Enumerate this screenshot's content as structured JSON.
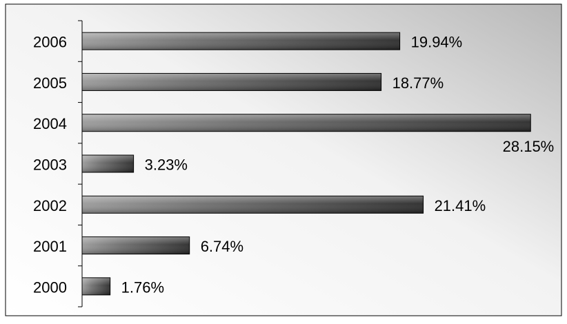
{
  "chart_data": {
    "type": "bar",
    "orientation": "horizontal",
    "categories": [
      "2006",
      "2005",
      "2004",
      "2003",
      "2002",
      "2001",
      "2000"
    ],
    "values": [
      19.94,
      18.77,
      28.15,
      3.23,
      21.41,
      6.74,
      1.76
    ],
    "value_labels": [
      "19.94%",
      "18.77%",
      "28.15%",
      "3.23%",
      "21.41%",
      "6.74%",
      "1.76%"
    ],
    "title": "",
    "xlabel": "",
    "ylabel": "",
    "xlim": [
      0,
      29
    ],
    "grid": false,
    "legend": "none",
    "colors": {
      "bar_dark": "#2a2a2a",
      "bar_light": "#9a9a9a",
      "background_light": "#ffffff",
      "background_dark": "#b8b8b8",
      "border": "#000000"
    }
  }
}
